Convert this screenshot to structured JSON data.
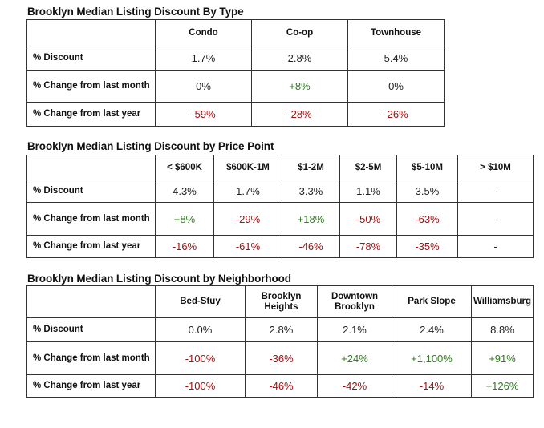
{
  "colors": {
    "positive": "#2e7d1e",
    "negative": "#a01010"
  },
  "tables": [
    {
      "title": "Brooklyn Median Listing Discount By Type",
      "corner": "",
      "columns": [
        "Condo",
        "Co-op",
        "Townhouse"
      ],
      "rows": [
        {
          "label": "% Discount",
          "values": [
            "1.7%",
            "2.8%",
            "5.4%"
          ]
        },
        {
          "label": "% Change from last month",
          "values": [
            "0%",
            "+8%",
            "0%"
          ]
        },
        {
          "label": "% Change from last year",
          "values": [
            "-59%",
            "-28%",
            "-26%"
          ]
        }
      ]
    },
    {
      "title": "Brooklyn Median Listing Discount by Price Point",
      "corner": "",
      "columns": [
        "< $600K",
        "$600K-1M",
        "$1-2M",
        "$2-5M",
        "$5-10M",
        "> $10M"
      ],
      "rows": [
        {
          "label": "% Discount",
          "values": [
            "4.3%",
            "1.7%",
            "3.3%",
            "1.1%",
            "3.5%",
            "-"
          ]
        },
        {
          "label": "% Change from last month",
          "values": [
            "+8%",
            "-29%",
            "+18%",
            "-50%",
            "-63%",
            "-"
          ]
        },
        {
          "label": "% Change from last year",
          "values": [
            "-16%",
            "-61%",
            "-46%",
            "-78%",
            "-35%",
            "-"
          ]
        }
      ]
    },
    {
      "title": "Brooklyn Median Listing Discount by Neighborhood",
      "corner": "",
      "columns": [
        "Bed-Stuy",
        "Brooklyn Heights",
        "Downtown Brooklyn",
        "Park Slope",
        "Williamsburg"
      ],
      "rows": [
        {
          "label": "% Discount",
          "values": [
            "0.0%",
            "2.8%",
            "2.1%",
            "2.4%",
            "8.8%"
          ]
        },
        {
          "label": "% Change from last month",
          "values": [
            "-100%",
            "-36%",
            "+24%",
            "+1,100%",
            "+91%"
          ]
        },
        {
          "label": "% Change from last year",
          "values": [
            "-100%",
            "-46%",
            "-42%",
            "-14%",
            "+126%"
          ]
        }
      ]
    }
  ]
}
